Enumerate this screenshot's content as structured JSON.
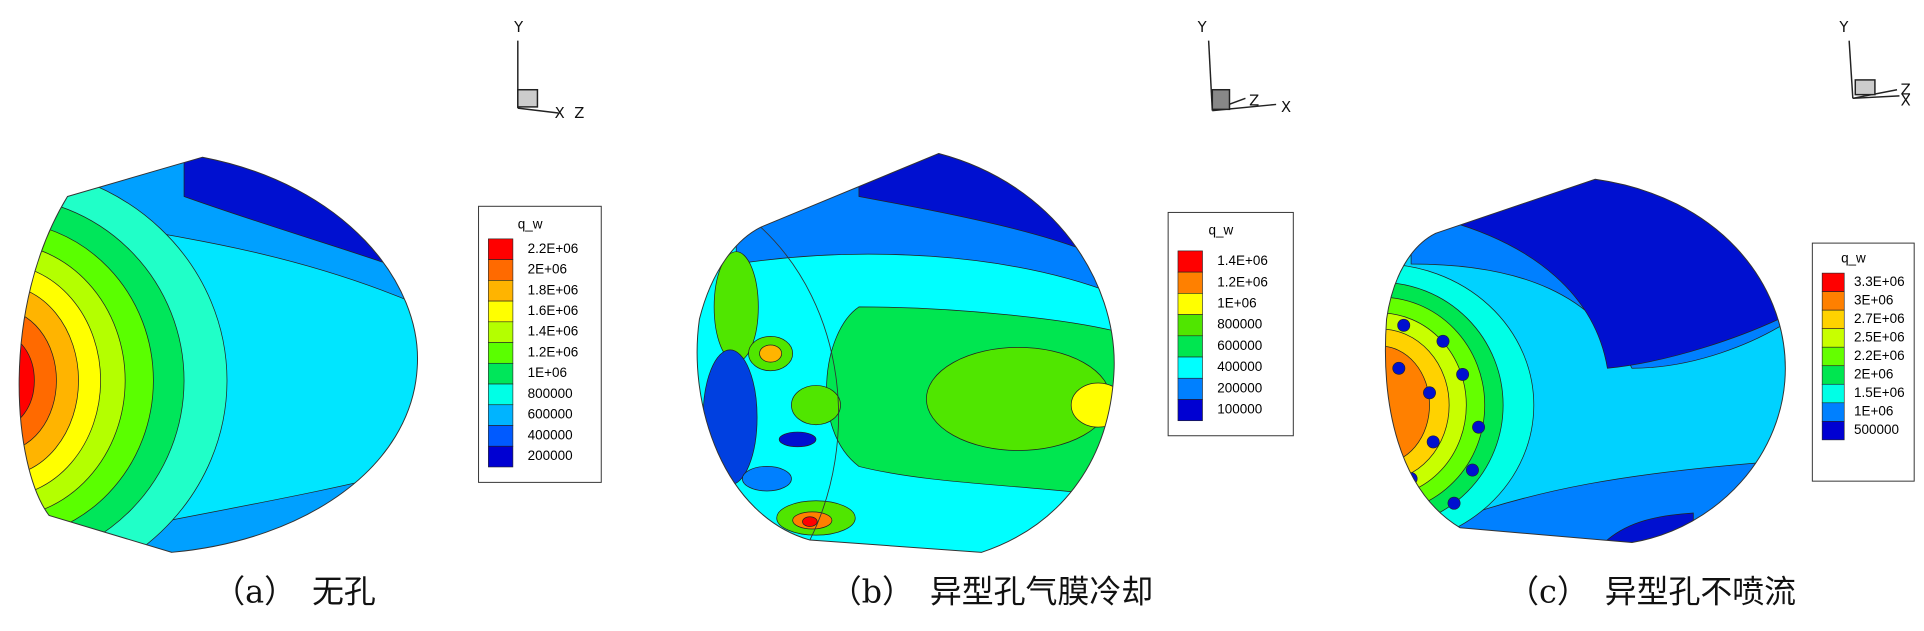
{
  "panels": [
    {
      "caption": "（a）　无孔",
      "axes": {
        "y": "Y",
        "x": "X",
        "z": "Z"
      },
      "legend": {
        "title": "q_w",
        "levels": [
          {
            "label": "2.2E+06",
            "color": "#ff0000"
          },
          {
            "label": "2E+06",
            "color": "#ff6a00"
          },
          {
            "label": "1.8E+06",
            "color": "#ffb400"
          },
          {
            "label": "1.6E+06",
            "color": "#ffff00"
          },
          {
            "label": "1.4E+06",
            "color": "#b4ff00"
          },
          {
            "label": "1.2E+06",
            "color": "#5aff00"
          },
          {
            "label": "1E+06",
            "color": "#00e65a"
          },
          {
            "label": "800000",
            "color": "#00ffe6"
          },
          {
            "label": "600000",
            "color": "#00b4ff"
          },
          {
            "label": "400000",
            "color": "#005aff"
          },
          {
            "label": "200000",
            "color": "#0000d2"
          }
        ]
      }
    },
    {
      "caption": "（b）　异型孔气膜冷却",
      "axes": {
        "y": "Y",
        "z": "Z",
        "x": "X"
      },
      "legend": {
        "title": "q_w",
        "levels": [
          {
            "label": "1.4E+06",
            "color": "#ff0000"
          },
          {
            "label": "1.2E+06",
            "color": "#ff8000"
          },
          {
            "label": "1E+06",
            "color": "#ffff00"
          },
          {
            "label": "800000",
            "color": "#50e600"
          },
          {
            "label": "600000",
            "color": "#00e650"
          },
          {
            "label": "400000",
            "color": "#00ffff"
          },
          {
            "label": "200000",
            "color": "#0080ff"
          },
          {
            "label": "100000",
            "color": "#0000d2"
          }
        ]
      }
    },
    {
      "caption": "（c）　异型孔不喷流",
      "axes": {
        "y": "Y",
        "z": "Z",
        "x": "X"
      },
      "legend": {
        "title": "q_w",
        "levels": [
          {
            "label": "3.3E+06",
            "color": "#ff0000"
          },
          {
            "label": "3E+06",
            "color": "#ff8000"
          },
          {
            "label": "2.7E+06",
            "color": "#ffd200"
          },
          {
            "label": "2.5E+06",
            "color": "#c8ff00"
          },
          {
            "label": "2.2E+06",
            "color": "#64ff00"
          },
          {
            "label": "2E+06",
            "color": "#00e650"
          },
          {
            "label": "1.5E+06",
            "color": "#00ffe6"
          },
          {
            "label": "1E+06",
            "color": "#0080ff"
          },
          {
            "label": "500000",
            "color": "#0000d2"
          }
        ]
      }
    }
  ]
}
